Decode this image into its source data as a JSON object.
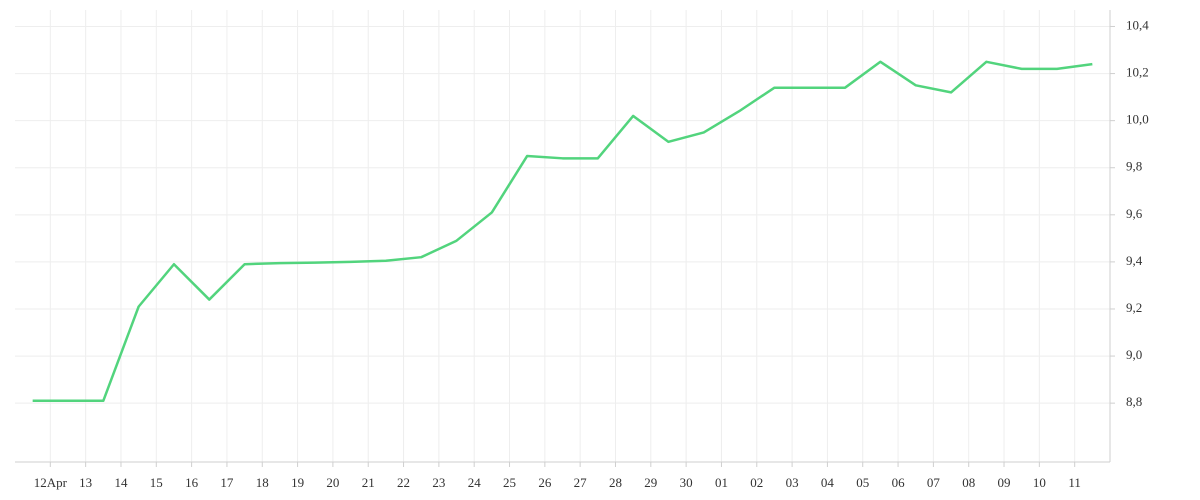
{
  "chart_data": {
    "type": "line",
    "x": [
      -0.5,
      0.5,
      1.5,
      2.5,
      3.5,
      4.5,
      5.5,
      6.5,
      7.5,
      8.5,
      9.5,
      10.5,
      11.5,
      12.5,
      13.5,
      14.5,
      15.5,
      16.5,
      17.5,
      18.5,
      19.5,
      20.5,
      21.5,
      22.5,
      23.5,
      24.5,
      25.5,
      26.5,
      27.5,
      28.5,
      29.5
    ],
    "series": [
      {
        "color": "#52d47d",
        "values": [
          8.81,
          8.81,
          8.81,
          9.21,
          9.39,
          9.24,
          9.39,
          9.395,
          9.397,
          9.4,
          9.405,
          9.42,
          9.49,
          9.61,
          9.85,
          9.84,
          9.84,
          10.02,
          9.91,
          9.95,
          10.04,
          10.14,
          10.14,
          10.14,
          10.25,
          10.15,
          10.12,
          10.25,
          10.22,
          10.22,
          10.24
        ]
      }
    ],
    "xlim": [
      -1,
      30
    ],
    "xticks": [
      {
        "value": 0,
        "label": "12Apr"
      },
      {
        "value": 1,
        "label": "13"
      },
      {
        "value": 2,
        "label": "14"
      },
      {
        "value": 3,
        "label": "15"
      },
      {
        "value": 4,
        "label": "16"
      },
      {
        "value": 5,
        "label": "17"
      },
      {
        "value": 6,
        "label": "18"
      },
      {
        "value": 7,
        "label": "19"
      },
      {
        "value": 8,
        "label": "20"
      },
      {
        "value": 9,
        "label": "21"
      },
      {
        "value": 10,
        "label": "22"
      },
      {
        "value": 11,
        "label": "23"
      },
      {
        "value": 12,
        "label": "24"
      },
      {
        "value": 13,
        "label": "25"
      },
      {
        "value": 14,
        "label": "26"
      },
      {
        "value": 15,
        "label": "27"
      },
      {
        "value": 16,
        "label": "28"
      },
      {
        "value": 17,
        "label": "29"
      },
      {
        "value": 18,
        "label": "30"
      },
      {
        "value": 19,
        "label": "01"
      },
      {
        "value": 20,
        "label": "02"
      },
      {
        "value": 21,
        "label": "03"
      },
      {
        "value": 22,
        "label": "04"
      },
      {
        "value": 23,
        "label": "05"
      },
      {
        "value": 24,
        "label": "06"
      },
      {
        "value": 25,
        "label": "07"
      },
      {
        "value": 26,
        "label": "08"
      },
      {
        "value": 27,
        "label": "09"
      },
      {
        "value": 28,
        "label": "10"
      },
      {
        "value": 29,
        "label": "11"
      }
    ],
    "ylim": [
      8.55,
      10.47
    ],
    "yticks": [
      {
        "value": 8.8,
        "label": "8,8"
      },
      {
        "value": 9.0,
        "label": "9,0"
      },
      {
        "value": 9.2,
        "label": "9,2"
      },
      {
        "value": 9.4,
        "label": "9,4"
      },
      {
        "value": 9.6,
        "label": "9,6"
      },
      {
        "value": 9.8,
        "label": "9,8"
      },
      {
        "value": 10.0,
        "label": "10,0"
      },
      {
        "value": 10.2,
        "label": "10,2"
      },
      {
        "value": 10.4,
        "label": "10,4"
      }
    ],
    "grid": true
  }
}
